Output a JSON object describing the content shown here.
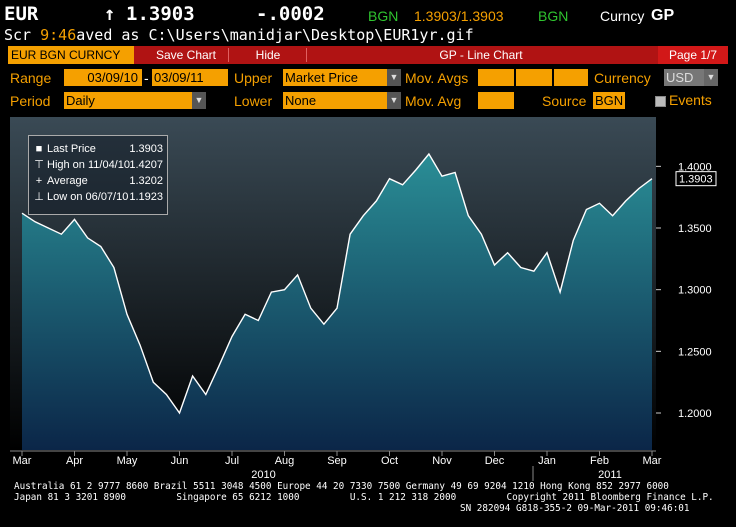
{
  "header": {
    "ticker": "EUR",
    "arrow": "↑",
    "price": "1.3903",
    "change": "-.0002",
    "source1": "BGN",
    "bidask": "1.3903/1.3903",
    "source2": "BGN",
    "mode_prefix": "Curncy",
    "mode": "GP",
    "line2_prefix": "Scr ",
    "time": "9:46",
    "line2_suffix": "aved as C:\\Users\\manidjar\\Desktop\\EUR1yr.gif"
  },
  "tabs": {
    "security": "EUR BGN CURNCY",
    "save_chart": "Save Chart",
    "hide": "Hide",
    "title": "GP - Line Chart",
    "page": "Page 1/7"
  },
  "controls": {
    "range_label": "Range",
    "range_start": "03/09/10",
    "range_dash": "-",
    "range_end": "03/09/11",
    "upper_label": "Upper",
    "upper_value": "Market Price",
    "mov_avgs_label": "Mov. Avgs",
    "currency_label": "Currency",
    "currency_value": "USD",
    "period_label": "Period",
    "period_value": "Daily",
    "lower_label": "Lower",
    "lower_value": "None",
    "mov_avg_label": "Mov. Avg",
    "source_label": "Source",
    "source_value": "BGN",
    "events_label": "Events"
  },
  "legend": {
    "last_price_label": "Last Price",
    "last_price_value": "1.3903",
    "high_label": "High on 11/04/10",
    "high_value": "1.4207",
    "average_label": "Average",
    "average_value": "1.3202",
    "low_label": "Low on 06/07/10",
    "low_value": "1.1923"
  },
  "colors": {
    "accent": "#f5a000",
    "tab_red": "#b01313",
    "area_top": "#2a8e96",
    "area_bottom": "#0b2648",
    "bg_top": "#3a4a55",
    "bg_bottom": "#000000"
  },
  "chart_data": {
    "type": "area",
    "title": "",
    "xlabel": "",
    "ylabel": "",
    "x_ticks": [
      "Mar",
      "Apr",
      "May",
      "Jun",
      "Jul",
      "Aug",
      "Sep",
      "Oct",
      "Nov",
      "Dec",
      "Jan",
      "Feb",
      "Mar"
    ],
    "year_labels": [
      "2010",
      "2011"
    ],
    "y_ticks": [
      "1.2000",
      "1.2500",
      "1.3000",
      "1.3500",
      "1.4000"
    ],
    "ylim": [
      1.17,
      1.44
    ],
    "last_value_label": "1.3903",
    "grid": false,
    "legend_position": "top-left",
    "series": [
      {
        "x_month_index": [
          0,
          0.25,
          0.5,
          0.75,
          1.0,
          1.25,
          1.5,
          1.75,
          2.0,
          2.25,
          2.5,
          2.75,
          3.0,
          3.25,
          3.5,
          3.75,
          4.0,
          4.25,
          4.5,
          4.75,
          5.0,
          5.25,
          5.5,
          5.75,
          6.0,
          6.25,
          6.5,
          6.75,
          7.0,
          7.25,
          7.5,
          7.75,
          8.0,
          8.25,
          8.5,
          8.75,
          9.0,
          9.25,
          9.5,
          9.75,
          10.0,
          10.25,
          10.5,
          10.75,
          11.0,
          11.25,
          11.5,
          11.75,
          12.0
        ],
        "values": [
          1.362,
          1.355,
          1.35,
          1.345,
          1.357,
          1.342,
          1.335,
          1.318,
          1.28,
          1.255,
          1.225,
          1.215,
          1.2,
          1.23,
          1.215,
          1.238,
          1.262,
          1.28,
          1.275,
          1.298,
          1.3,
          1.312,
          1.285,
          1.272,
          1.285,
          1.345,
          1.36,
          1.372,
          1.39,
          1.385,
          1.397,
          1.41,
          1.392,
          1.395,
          1.36,
          1.345,
          1.32,
          1.33,
          1.318,
          1.315,
          1.33,
          1.298,
          1.34,
          1.365,
          1.37,
          1.36,
          1.372,
          1.382,
          1.39
        ]
      }
    ]
  },
  "footer": {
    "line1": "Australia 61 2 9777 8600 Brazil 5511 3048 4500 Europe 44 20 7330 7500 Germany 49 69 9204 1210 Hong Kong 852 2977 6000",
    "line2": "Japan 81 3 3201 8900         Singapore 65 6212 1000         U.S. 1 212 318 2000         Copyright 2011 Bloomberg Finance L.P.",
    "line3": "SN 282094 G818-355-2 09-Mar-2011 09:46:01"
  }
}
